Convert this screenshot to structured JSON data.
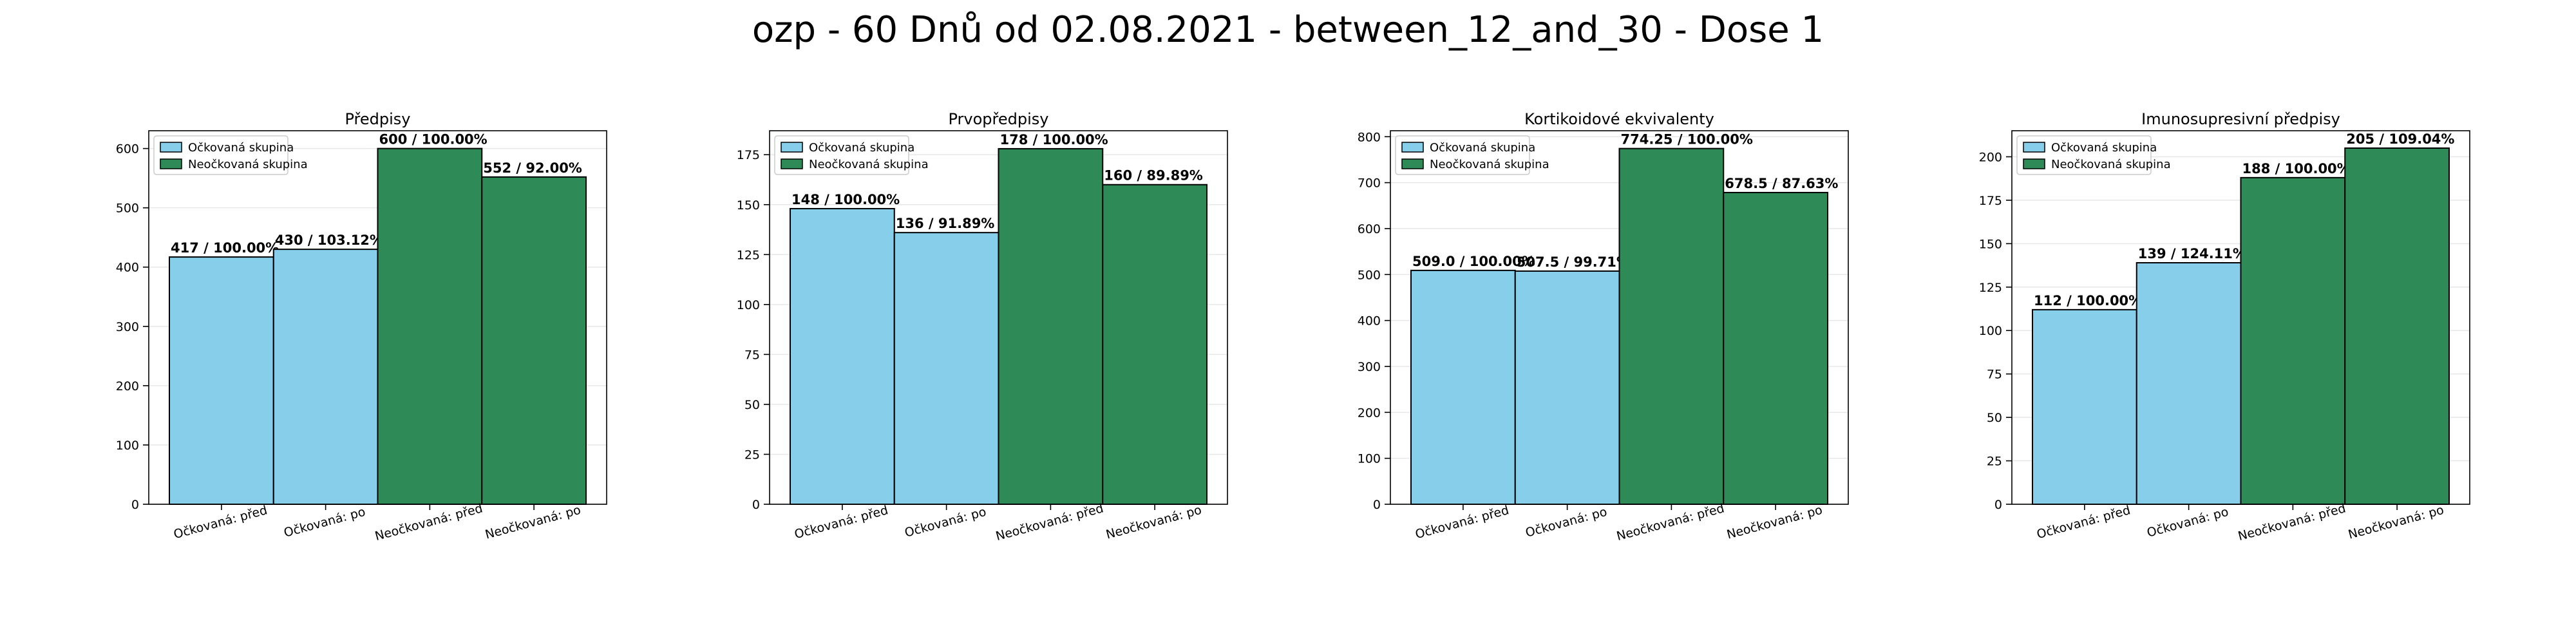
{
  "figure": {
    "title": "ozp - 60 Dnů od 02.08.2021 - between_12_and_30 - Dose 1",
    "colors": {
      "vaccinated": "#87ceeb",
      "unvaccinated": "#2e8b57"
    }
  },
  "chart_data": [
    {
      "type": "bar",
      "title": "Předpisy",
      "categories": [
        "Očkovaná: před",
        "Očkovaná: po",
        "Neočkovaná: před",
        "Neočkovaná: po"
      ],
      "values": [
        417,
        430,
        600,
        552
      ],
      "bar_labels": [
        "417 / 100.00%",
        "430 / 103.12%",
        "600 / 100.00%",
        "552 / 92.00%"
      ],
      "bar_groups": [
        "vaccinated",
        "vaccinated",
        "unvaccinated",
        "unvaccinated"
      ],
      "legend": [
        "Očkovaná skupina",
        "Neočkovaná skupina"
      ],
      "legend_position": "upper-left",
      "ylim": [
        0,
        630
      ],
      "yticks": [
        0,
        100,
        200,
        300,
        400,
        500,
        600
      ],
      "grid": true
    },
    {
      "type": "bar",
      "title": "Prvopředpisy",
      "categories": [
        "Očkovaná: před",
        "Očkovaná: po",
        "Neočkovaná: před",
        "Neočkovaná: po"
      ],
      "values": [
        148,
        136,
        178,
        160
      ],
      "bar_labels": [
        "148 / 100.00%",
        "136 / 91.89%",
        "178 / 100.00%",
        "160 / 89.89%"
      ],
      "bar_groups": [
        "vaccinated",
        "vaccinated",
        "unvaccinated",
        "unvaccinated"
      ],
      "legend": [
        "Očkovaná skupina",
        "Neočkovaná skupina"
      ],
      "legend_position": "upper-left",
      "ylim": [
        0,
        187
      ],
      "yticks": [
        0,
        25,
        50,
        75,
        100,
        125,
        150,
        175
      ],
      "grid": true
    },
    {
      "type": "bar",
      "title": "Kortikoidové ekvivalenty",
      "categories": [
        "Očkovaná: před",
        "Očkovaná: po",
        "Neočkovaná: před",
        "Neočkovaná: po"
      ],
      "values": [
        509.0,
        507.5,
        774.25,
        678.5
      ],
      "bar_labels": [
        "509.0 / 100.00%",
        "507.5 / 99.71%",
        "774.25 / 100.00%",
        "678.5 / 87.63%"
      ],
      "bar_groups": [
        "vaccinated",
        "vaccinated",
        "unvaccinated",
        "unvaccinated"
      ],
      "legend": [
        "Očkovaná skupina",
        "Neočkovaná skupina"
      ],
      "legend_position": "upper-left",
      "ylim": [
        0,
        813
      ],
      "yticks": [
        0,
        100,
        200,
        300,
        400,
        500,
        600,
        700,
        800
      ],
      "grid": true
    },
    {
      "type": "bar",
      "title": "Imunosupresivní předpisy",
      "categories": [
        "Očkovaná: před",
        "Očkovaná: po",
        "Neočkovaná: před",
        "Neočkovaná: po"
      ],
      "values": [
        112,
        139,
        188,
        205
      ],
      "bar_labels": [
        "112 / 100.00%",
        "139 / 124.11%",
        "188 / 100.00%",
        "205 / 109.04%"
      ],
      "bar_groups": [
        "vaccinated",
        "vaccinated",
        "unvaccinated",
        "unvaccinated"
      ],
      "legend": [
        "Očkovaná skupina",
        "Neočkovaná skupina"
      ],
      "legend_position": "upper-left",
      "ylim": [
        0,
        215
      ],
      "yticks": [
        0,
        25,
        50,
        75,
        100,
        125,
        150,
        175,
        200
      ],
      "grid": true
    }
  ]
}
